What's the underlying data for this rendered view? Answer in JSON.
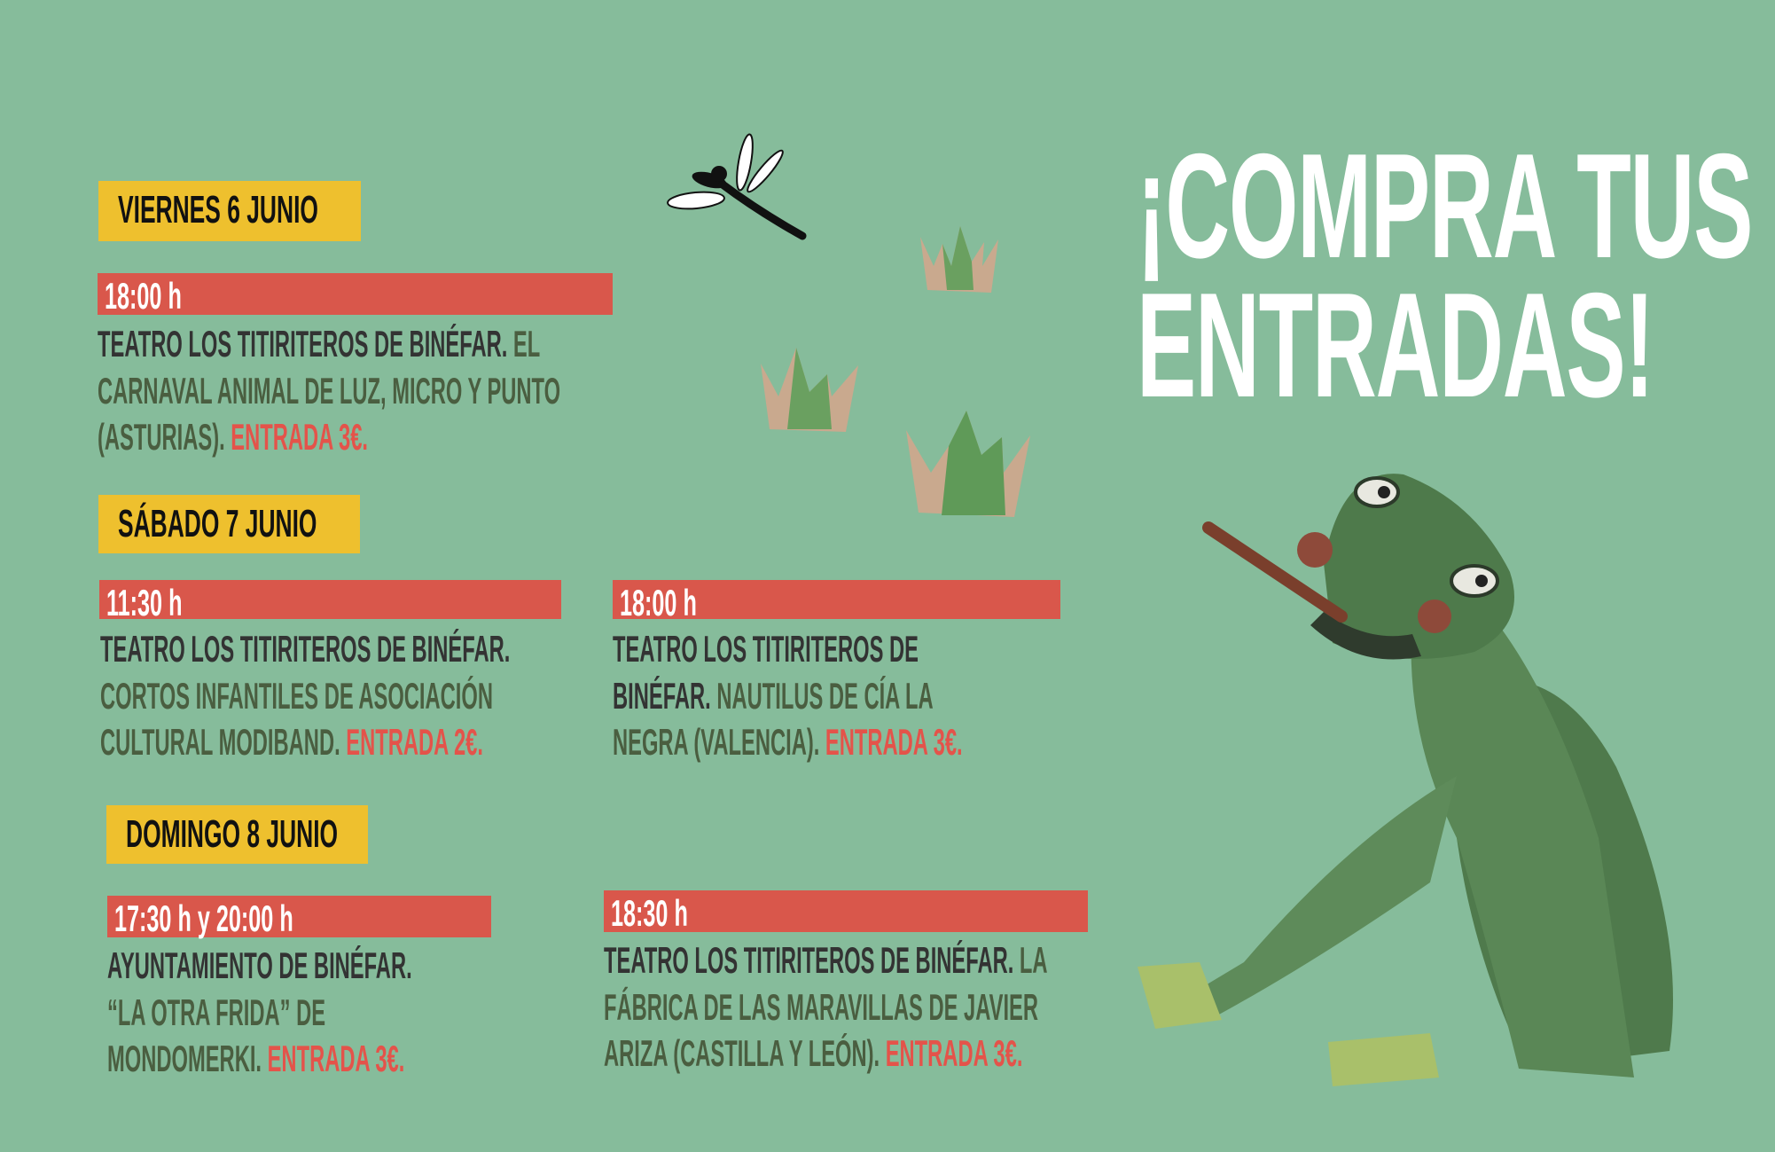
{
  "headline": {
    "line1": "¡COMPRA TUS",
    "line2": "ENTRADAS!"
  },
  "colors": {
    "background": "#86bc9b",
    "day_label": "#eec02e",
    "time_bar": "#d9574b",
    "venue_text": "#333333",
    "title_text": "#4a5e40",
    "price_text": "#e4534a"
  },
  "days": [
    {
      "label": "VIERNES 6 JUNIO"
    },
    {
      "label": "SÁBADO 7 JUNIO"
    },
    {
      "label": "DOMINGO 8 JUNIO"
    }
  ],
  "events": [
    {
      "time": "18:00 h",
      "lines": [
        {
          "dark": "TEATRO LOS TITIRITEROS DE BINÉFAR.",
          "green": " EL"
        },
        {
          "green": "CARNAVAL ANIMAL DE LUZ, MICRO Y PUNTO"
        },
        {
          "green": "(ASTURIAS). ",
          "red": "ENTRADA 3€."
        }
      ]
    },
    {
      "time": "11:30 h",
      "lines": [
        {
          "dark": "TEATRO LOS TITIRITEROS DE BINÉFAR."
        },
        {
          "green": "CORTOS INFANTILES DE ASOCIACIÓN"
        },
        {
          "green": "CULTURAL MODIBAND. ",
          "red": "ENTRADA 2€."
        }
      ]
    },
    {
      "time": "18:00 h",
      "lines": [
        {
          "dark": "TEATRO LOS TITIRITEROS DE"
        },
        {
          "dark": "BINÉFAR.",
          "green": " NAUTILUS DE CÍA LA"
        },
        {
          "green": "NEGRA (VALENCIA). ",
          "red": "ENTRADA 3€."
        }
      ]
    },
    {
      "time": "17:30 h y  20:00 h",
      "lines": [
        {
          "dark": "AYUNTAMIENTO DE BINÉFAR."
        },
        {
          "green": "“LA OTRA FRIDA” DE"
        },
        {
          "green": "MONDOMERKI. ",
          "red": "ENTRADA 3€."
        }
      ]
    },
    {
      "time": "18:30 h",
      "lines": [
        {
          "dark": "TEATRO LOS TITIRITEROS DE BINÉFAR.",
          "green": " LA"
        },
        {
          "green": "FÁBRICA DE LAS MARAVILLAS DE JAVIER"
        },
        {
          "green": "ARIZA (CASTILLA Y LEÓN). ",
          "red": "ENTRADA 3€."
        }
      ]
    }
  ],
  "illustrations": [
    "dragonfly-icon",
    "grass-tuft-icon",
    "frog-illustration"
  ]
}
